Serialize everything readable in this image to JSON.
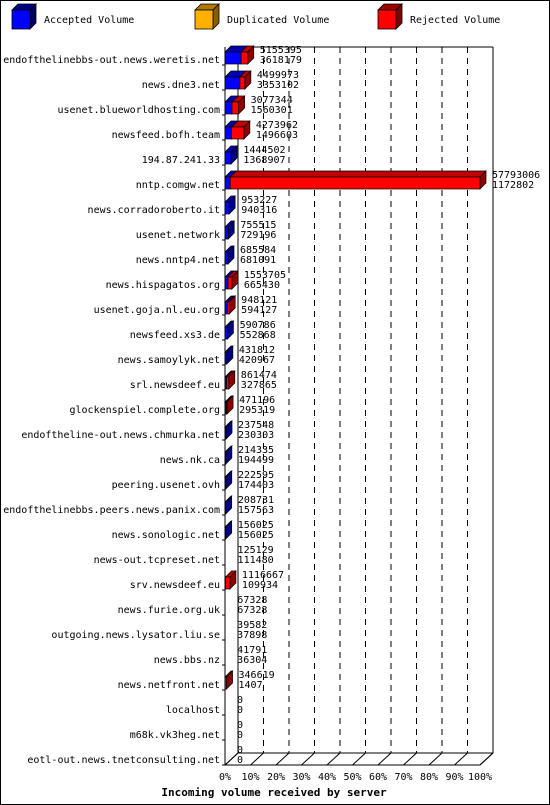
{
  "chart_data": {
    "type": "bar",
    "orientation": "horizontal",
    "stacked": true,
    "xlabel": "Incoming volume received by server",
    "ylabel": "",
    "xlim": [
      0,
      100
    ],
    "x_unit": "%",
    "x_ticks": [
      "0%",
      "10%",
      "20%",
      "30%",
      "40%",
      "50%",
      "60%",
      "70%",
      "80%",
      "90%",
      "100%"
    ],
    "grid": true,
    "legend_position": "top",
    "series": [
      {
        "name": "Accepted Volume",
        "color": "#0000ff"
      },
      {
        "name": "Duplicated Volume",
        "color": "#ffb000"
      },
      {
        "name": "Rejected Volume",
        "color": "#ff0000"
      }
    ],
    "categories": [
      "endofthelinebbs-out.news.weretis.net",
      "news.dne3.net",
      "usenet.blueworldhosting.com",
      "newsfeed.bofh.team",
      "194.87.241.33",
      "nntp.comgw.net",
      "news.corradoroberto.it",
      "usenet.network",
      "news.nntp4.net",
      "news.hispagatos.org",
      "usenet.goja.nl.eu.org",
      "newsfeed.xs3.de",
      "news.samoylyk.net",
      "srl.newsdeef.eu",
      "glockenspiel.complete.org",
      "endoftheline-out.news.chmurka.net",
      "news.nk.ca",
      "peering.usenet.ovh",
      "endofthelinebbs.peers.news.panix.com",
      "news.sonologic.net",
      "news-out.tcpreset.net",
      "srv.newsdeef.eu",
      "news.furie.org.uk",
      "outgoing.news.lysator.liu.se",
      "news.bbs.nz",
      "news.netfront.net",
      "localhost",
      "m68k.vk3heg.net",
      "eotl-out.news.tnetconsulting.net"
    ],
    "total_values": [
      5155395,
      4499973,
      3077344,
      4273962,
      1444502,
      57793006,
      953227,
      755515,
      685584,
      1553705,
      948121,
      590786,
      431812,
      861474,
      471196,
      237548,
      214335,
      222595,
      208731,
      156025,
      125129,
      1116667,
      67328,
      39582,
      41791,
      346619,
      0,
      0,
      0
    ],
    "accepted_values": [
      3618179,
      3353102,
      1560301,
      1496603,
      1368907,
      1172802,
      940316,
      729196,
      681091,
      665430,
      594127,
      552868,
      420967,
      327865,
      295319,
      230303,
      194499,
      174403,
      157563,
      156025,
      111480,
      109934,
      67328,
      37898,
      36304,
      1407,
      0,
      0,
      0
    ]
  }
}
